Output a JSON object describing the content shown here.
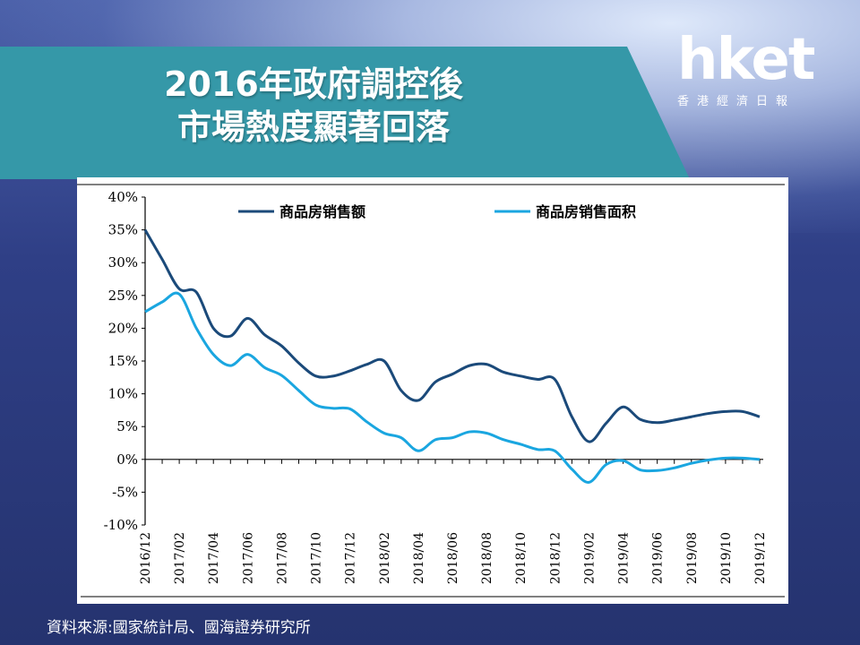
{
  "title_lines": [
    "2016年政府調控後",
    "市場熱度顯著回落"
  ],
  "logo": {
    "main": "hket",
    "sub": "香港經濟日報"
  },
  "source": "資料來源:國家統計局、國海證券研究所",
  "colors": {
    "series1": "#1b4a7a",
    "series2": "#1aa6e0",
    "band": "#3598a8"
  },
  "chart_data": {
    "type": "line",
    "title": "",
    "xlabel": "",
    "ylabel": "",
    "y_tick_labels": [
      "40%",
      "35%",
      "30%",
      "25%",
      "20%",
      "15%",
      "10%",
      "5%",
      "0%",
      "-5%",
      "-10%"
    ],
    "ylim": [
      -10,
      40
    ],
    "x_tick_labels": [
      "2016/12",
      "2017/02",
      "2017/04",
      "2017/06",
      "2017/08",
      "2017/10",
      "2017/12",
      "2018/02",
      "2018/04",
      "2018/06",
      "2018/08",
      "2018/10",
      "2018/12",
      "2019/02",
      "2019/04",
      "2019/06",
      "2019/08",
      "2019/10",
      "2019/12"
    ],
    "x": [
      "2016/12",
      "2017/01",
      "2017/02",
      "2017/03",
      "2017/04",
      "2017/05",
      "2017/06",
      "2017/07",
      "2017/08",
      "2017/09",
      "2017/10",
      "2017/11",
      "2017/12",
      "2018/01",
      "2018/02",
      "2018/03",
      "2018/04",
      "2018/05",
      "2018/06",
      "2018/07",
      "2018/08",
      "2018/09",
      "2018/10",
      "2018/11",
      "2018/12",
      "2019/01",
      "2019/02",
      "2019/03",
      "2019/04",
      "2019/05",
      "2019/06",
      "2019/07",
      "2019/08",
      "2019/09",
      "2019/10",
      "2019/11",
      "2019/12"
    ],
    "grid": false,
    "legend": "top",
    "series": [
      {
        "name": "商品房销售额",
        "values": [
          35.0,
          30.5,
          26.0,
          25.5,
          20.0,
          18.8,
          21.5,
          19.0,
          17.3,
          14.7,
          12.7,
          12.7,
          13.5,
          14.5,
          15.0,
          10.5,
          9.0,
          11.8,
          13.0,
          14.3,
          14.5,
          13.3,
          12.7,
          12.2,
          12.2,
          6.5,
          2.7,
          5.5,
          8.0,
          6.1,
          5.6,
          6.0,
          6.5,
          7.0,
          7.3,
          7.3,
          6.5
        ]
      },
      {
        "name": "商品房销售面积",
        "values": [
          22.5,
          24.0,
          25.2,
          20.0,
          16.0,
          14.3,
          16.0,
          14.0,
          12.8,
          10.5,
          8.3,
          7.8,
          7.7,
          5.7,
          4.0,
          3.3,
          1.3,
          3.0,
          3.3,
          4.2,
          4.0,
          3.0,
          2.3,
          1.5,
          1.3,
          -1.5,
          -3.5,
          -0.8,
          -0.2,
          -1.6,
          -1.7,
          -1.3,
          -0.6,
          -0.1,
          0.2,
          0.2,
          0.0
        ]
      }
    ]
  }
}
